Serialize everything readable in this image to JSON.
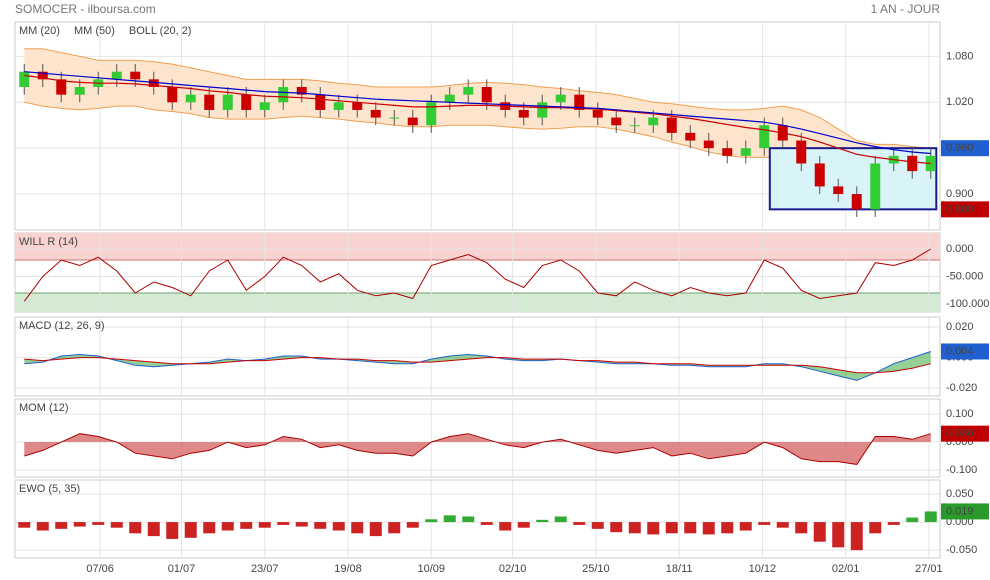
{
  "header": {
    "title": "SOMOCER - ilboursa.com",
    "period": "1 AN - JOUR"
  },
  "x_axis": {
    "xlim": [
      -0.5,
      49.5
    ],
    "xticks": [
      {
        "value": 4.1,
        "label": "07/06"
      },
      {
        "value": 8.5,
        "label": "01/07"
      },
      {
        "value": 13.0,
        "label": "23/07"
      },
      {
        "value": 17.5,
        "label": "19/08"
      },
      {
        "value": 22.0,
        "label": "10/09"
      },
      {
        "value": 26.4,
        "label": "02/10"
      },
      {
        "value": 30.9,
        "label": "25/10"
      },
      {
        "value": 35.4,
        "label": "18/11"
      },
      {
        "value": 39.9,
        "label": "10/12"
      },
      {
        "value": 44.4,
        "label": "02/01"
      },
      {
        "value": 48.9,
        "label": "27/01"
      }
    ]
  },
  "chart_data": [
    {
      "type": "candlestick",
      "up_color": "#33cc33",
      "down_color": "#cc0000",
      "ylim": [
        0.853,
        1.125
      ],
      "yticks": [
        {
          "value": 1.08,
          "label": "1.080"
        },
        {
          "value": 1.02,
          "label": "1.020"
        },
        {
          "value": 0.96,
          "label": "0.960"
        },
        {
          "value": 0.9,
          "label": "0.900"
        }
      ],
      "ohlc": {
        "open": [
          1.04,
          1.06,
          1.05,
          1.03,
          1.04,
          1.05,
          1.06,
          1.05,
          1.04,
          1.02,
          1.03,
          1.01,
          1.03,
          1.01,
          1.02,
          1.04,
          1.03,
          1.01,
          1.02,
          1.01,
          1.0,
          1.0,
          0.99,
          1.02,
          1.03,
          1.04,
          1.02,
          1.01,
          1.0,
          1.02,
          1.03,
          1.01,
          1.0,
          0.99,
          0.99,
          1.0,
          0.98,
          0.97,
          0.96,
          0.95,
          0.96,
          0.99,
          0.97,
          0.94,
          0.91,
          0.9,
          0.88,
          0.94,
          0.95,
          0.93
        ],
        "high": [
          1.07,
          1.07,
          1.06,
          1.05,
          1.06,
          1.07,
          1.07,
          1.06,
          1.05,
          1.04,
          1.04,
          1.04,
          1.04,
          1.03,
          1.05,
          1.05,
          1.04,
          1.03,
          1.03,
          1.02,
          1.01,
          1.01,
          1.03,
          1.04,
          1.05,
          1.05,
          1.03,
          1.02,
          1.03,
          1.04,
          1.04,
          1.02,
          1.01,
          1.0,
          1.01,
          1.01,
          0.99,
          0.98,
          0.97,
          0.97,
          1.0,
          1.0,
          0.98,
          0.95,
          0.92,
          0.91,
          0.95,
          0.96,
          0.96,
          0.96
        ],
        "low": [
          1.03,
          1.04,
          1.02,
          1.02,
          1.03,
          1.04,
          1.04,
          1.03,
          1.01,
          1.01,
          1.0,
          1.0,
          1.0,
          1.0,
          1.01,
          1.02,
          1.0,
          1.0,
          1.0,
          0.99,
          0.99,
          0.98,
          0.98,
          1.01,
          1.02,
          1.01,
          1.0,
          0.99,
          0.99,
          1.01,
          1.0,
          0.99,
          0.98,
          0.98,
          0.98,
          0.97,
          0.96,
          0.95,
          0.94,
          0.94,
          0.95,
          0.96,
          0.93,
          0.9,
          0.89,
          0.87,
          0.87,
          0.93,
          0.92,
          0.92
        ],
        "close": [
          1.06,
          1.05,
          1.03,
          1.04,
          1.05,
          1.06,
          1.05,
          1.04,
          1.02,
          1.03,
          1.01,
          1.03,
          1.01,
          1.02,
          1.04,
          1.03,
          1.01,
          1.02,
          1.01,
          1.0,
          1.0,
          0.99,
          1.02,
          1.03,
          1.04,
          1.02,
          1.01,
          1.0,
          1.02,
          1.03,
          1.01,
          1.0,
          0.99,
          0.99,
          1.0,
          0.98,
          0.97,
          0.96,
          0.95,
          0.96,
          0.99,
          0.97,
          0.94,
          0.91,
          0.9,
          0.88,
          0.94,
          0.95,
          0.93,
          0.95
        ]
      },
      "series": [
        {
          "name": "MM (20)",
          "color": "#cc0000",
          "values": [
            1.055,
            1.052,
            1.048,
            1.046,
            1.045,
            1.045,
            1.044,
            1.042,
            1.04,
            1.038,
            1.035,
            1.033,
            1.03,
            1.028,
            1.027,
            1.026,
            1.024,
            1.022,
            1.02,
            1.018,
            1.016,
            1.014,
            1.014,
            1.015,
            1.016,
            1.016,
            1.015,
            1.014,
            1.013,
            1.013,
            1.012,
            1.011,
            1.009,
            1.007,
            1.005,
            1.002,
            0.999,
            0.995,
            0.991,
            0.987,
            0.984,
            0.98,
            0.975,
            0.968,
            0.96,
            0.952,
            0.948,
            0.945,
            0.942,
            0.94
          ]
        },
        {
          "name": "MM (50)",
          "color": "#0000cc",
          "values": [
            1.06,
            1.058,
            1.056,
            1.054,
            1.052,
            1.05,
            1.048,
            1.046,
            1.044,
            1.042,
            1.04,
            1.038,
            1.036,
            1.034,
            1.033,
            1.032,
            1.03,
            1.028,
            1.026,
            1.024,
            1.023,
            1.022,
            1.021,
            1.02,
            1.019,
            1.018,
            1.017,
            1.016,
            1.015,
            1.014,
            1.013,
            1.012,
            1.01,
            1.008,
            1.006,
            1.004,
            1.002,
            1.0,
            0.998,
            0.996,
            0.994,
            0.99,
            0.985,
            0.979,
            0.973,
            0.967,
            0.962,
            0.958,
            0.955,
            0.953
          ]
        },
        {
          "name": "BOLL (20, 2)",
          "color": "#f0a050",
          "fill": "#fde4cc",
          "upper": [
            1.09,
            1.09,
            1.085,
            1.08,
            1.075,
            1.075,
            1.075,
            1.073,
            1.07,
            1.065,
            1.06,
            1.055,
            1.05,
            1.05,
            1.05,
            1.05,
            1.048,
            1.045,
            1.043,
            1.04,
            1.04,
            1.04,
            1.04,
            1.042,
            1.045,
            1.046,
            1.045,
            1.043,
            1.04,
            1.038,
            1.035,
            1.033,
            1.03,
            1.025,
            1.02,
            1.018,
            1.015,
            1.012,
            1.01,
            1.01,
            1.012,
            1.015,
            1.01,
            1.0,
            0.985,
            0.97,
            0.965,
            0.965,
            0.962,
            0.96
          ],
          "lower": [
            1.02,
            1.015,
            1.012,
            1.01,
            1.012,
            1.015,
            1.015,
            1.01,
            1.008,
            1.005,
            1.0,
            0.998,
            0.998,
            0.998,
            1.0,
            1.002,
            1.0,
            0.998,
            0.995,
            0.993,
            0.99,
            0.988,
            0.988,
            0.99,
            0.99,
            0.99,
            0.988,
            0.986,
            0.985,
            0.986,
            0.988,
            0.988,
            0.985,
            0.98,
            0.975,
            0.968,
            0.962,
            0.955,
            0.95,
            0.948,
            0.948,
            0.948,
            0.94,
            0.93,
            0.915,
            0.905,
            0.903,
            0.905,
            0.91,
            0.915
          ]
        }
      ],
      "range_box": {
        "x": [
          40.3,
          49.3
        ],
        "color": "#1a1a8c",
        "fill": "#d8f4f8",
        "high": {
          "value": 0.96,
          "label": "0.960",
          "color": "#1f5fd0"
        },
        "low": {
          "value": 0.88,
          "label": "0.880",
          "color": "#c00000"
        }
      }
    },
    {
      "type": "willr",
      "title": "WILL R (14)",
      "title_color": "#aa0000",
      "ylim": [
        -114.5,
        29
      ],
      "yticks": [
        {
          "value": 0,
          "label": "0.000"
        },
        {
          "value": -50,
          "label": "-50.000"
        },
        {
          "value": -100,
          "label": "-100.000"
        }
      ],
      "overbought": -20,
      "oversold": -80,
      "overbought_color": "#f9d2d2",
      "oversold_color": "#d3ead3",
      "color": "#aa0000",
      "values": [
        -95,
        -50,
        -20,
        -30,
        -15,
        -40,
        -80,
        -60,
        -70,
        -85,
        -40,
        -20,
        -75,
        -50,
        -15,
        -30,
        -60,
        -45,
        -75,
        -85,
        -80,
        -90,
        -30,
        -20,
        -10,
        -25,
        -55,
        -70,
        -30,
        -20,
        -40,
        -80,
        -85,
        -60,
        -75,
        -85,
        -70,
        -80,
        -85,
        -80,
        -20,
        -35,
        -75,
        -90,
        -85,
        -80,
        -25,
        -30,
        -20,
        0
      ]
    },
    {
      "type": "macd",
      "title": "MACD (12, 26, 9)",
      "title_color": "#1f5fd0",
      "ylim": [
        -0.0252,
        0.0266
      ],
      "yticks": [
        {
          "value": 0.02,
          "label": "0.020"
        },
        {
          "value": 0,
          "label": "0.000"
        },
        {
          "value": -0.02,
          "label": "-0.020"
        }
      ],
      "fill": "#4caf50",
      "series": [
        {
          "color": "#1f5fd0",
          "values": [
            -0.004,
            -0.003,
            0.001,
            0.002,
            0.001,
            -0.002,
            -0.005,
            -0.006,
            -0.005,
            -0.004,
            -0.003,
            -0.001,
            -0.002,
            -0.001,
            0.001,
            0.001,
            -0.001,
            -0.001,
            -0.002,
            -0.003,
            -0.004,
            -0.004,
            -0.001,
            0.001,
            0.002,
            0.001,
            -0.001,
            -0.002,
            -0.002,
            -0.001,
            -0.002,
            -0.003,
            -0.004,
            -0.004,
            -0.004,
            -0.005,
            -0.005,
            -0.006,
            -0.006,
            -0.006,
            -0.004,
            -0.004,
            -0.006,
            -0.009,
            -0.012,
            -0.015,
            -0.01,
            -0.004,
            0.0,
            0.004
          ]
        },
        {
          "color": "#cc0000",
          "values": [
            -0.001,
            -0.002,
            -0.001,
            0.0,
            0.0,
            -0.001,
            -0.002,
            -0.003,
            -0.004,
            -0.004,
            -0.004,
            -0.003,
            -0.002,
            -0.002,
            -0.001,
            0.0,
            0.0,
            -0.001,
            -0.001,
            -0.002,
            -0.002,
            -0.003,
            -0.003,
            -0.002,
            -0.001,
            0.0,
            0.0,
            -0.001,
            -0.001,
            -0.001,
            -0.002,
            -0.002,
            -0.003,
            -0.003,
            -0.004,
            -0.004,
            -0.004,
            -0.005,
            -0.005,
            -0.005,
            -0.005,
            -0.005,
            -0.005,
            -0.006,
            -0.008,
            -0.01,
            -0.01,
            -0.009,
            -0.007,
            -0.004
          ]
        }
      ],
      "last_label": {
        "value": 0.004,
        "label": "0.004",
        "color": "#1f5fd0"
      }
    },
    {
      "type": "momentum",
      "title": "MOM (12)",
      "title_color": "#aa0000",
      "ylim": [
        -0.125,
        0.154
      ],
      "yticks": [
        {
          "value": 0.1,
          "label": "0.100"
        },
        {
          "value": 0,
          "label": "0.000"
        },
        {
          "value": -0.1,
          "label": "-0.100"
        }
      ],
      "color": "#aa0000",
      "fill": "#d66a6a",
      "values": [
        -0.05,
        -0.03,
        0.0,
        0.03,
        0.02,
        0.0,
        -0.04,
        -0.05,
        -0.06,
        -0.04,
        -0.03,
        0.0,
        -0.02,
        -0.01,
        0.02,
        0.01,
        -0.02,
        -0.01,
        -0.03,
        -0.04,
        -0.04,
        -0.05,
        0.0,
        0.02,
        0.03,
        0.01,
        -0.01,
        -0.02,
        0.0,
        0.01,
        -0.01,
        -0.03,
        -0.04,
        -0.03,
        -0.02,
        -0.05,
        -0.04,
        -0.06,
        -0.05,
        -0.04,
        0.0,
        -0.02,
        -0.06,
        -0.07,
        -0.07,
        -0.08,
        0.02,
        0.02,
        0.01,
        0.03
      ],
      "last_label": {
        "value": 0.03,
        "label": "0.030",
        "color": "#c00000"
      }
    },
    {
      "type": "ewo",
      "title": "EWO (5, 35)",
      "title_color": "#2a8a2a",
      "ylim": [
        -0.064,
        0.075
      ],
      "yticks": [
        {
          "value": 0.05,
          "label": "0.050"
        },
        {
          "value": 0,
          "label": "0.000"
        },
        {
          "value": -0.05,
          "label": "-0.050"
        }
      ],
      "up_color": "#33aa33",
      "down_color": "#cc2222",
      "values": [
        -0.01,
        -0.015,
        -0.012,
        -0.008,
        -0.005,
        -0.01,
        -0.02,
        -0.025,
        -0.03,
        -0.028,
        -0.02,
        -0.015,
        -0.012,
        -0.01,
        -0.005,
        -0.008,
        -0.012,
        -0.015,
        -0.02,
        -0.025,
        -0.02,
        -0.01,
        0.005,
        0.012,
        0.01,
        -0.005,
        -0.015,
        -0.01,
        0.004,
        0.01,
        -0.005,
        -0.012,
        -0.018,
        -0.02,
        -0.022,
        -0.02,
        -0.02,
        -0.022,
        -0.02,
        -0.015,
        -0.005,
        -0.01,
        -0.02,
        -0.035,
        -0.045,
        -0.05,
        -0.02,
        -0.005,
        0.008,
        0.019
      ],
      "last_label": {
        "value": 0.019,
        "label": "0.019",
        "color": "#2a9a2a"
      }
    }
  ]
}
